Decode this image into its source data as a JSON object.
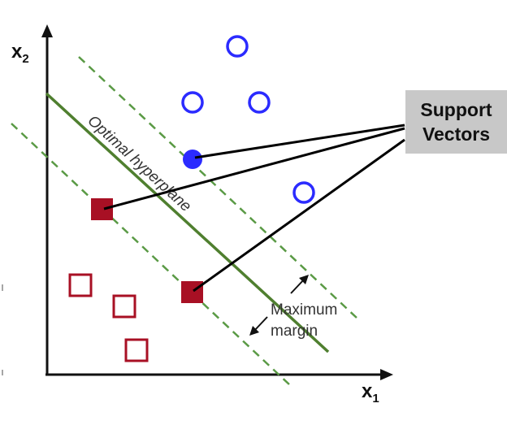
{
  "axes": {
    "x_label": "x",
    "x_subscript": "1",
    "y_label": "x",
    "y_subscript": "2"
  },
  "hyperplane_label": "Optimal hyperplane",
  "margin_label_line1": "Maximum",
  "margin_label_line2": "margin",
  "callout": {
    "line1": "Support",
    "line2": "Vectors"
  },
  "colors": {
    "circle_class": "#2b2bff",
    "square_class": "#a81024",
    "hyperplane": "#4f7f2f",
    "margin_lines": "#5a9a45",
    "callout_bg": "#c8c8c8"
  }
}
